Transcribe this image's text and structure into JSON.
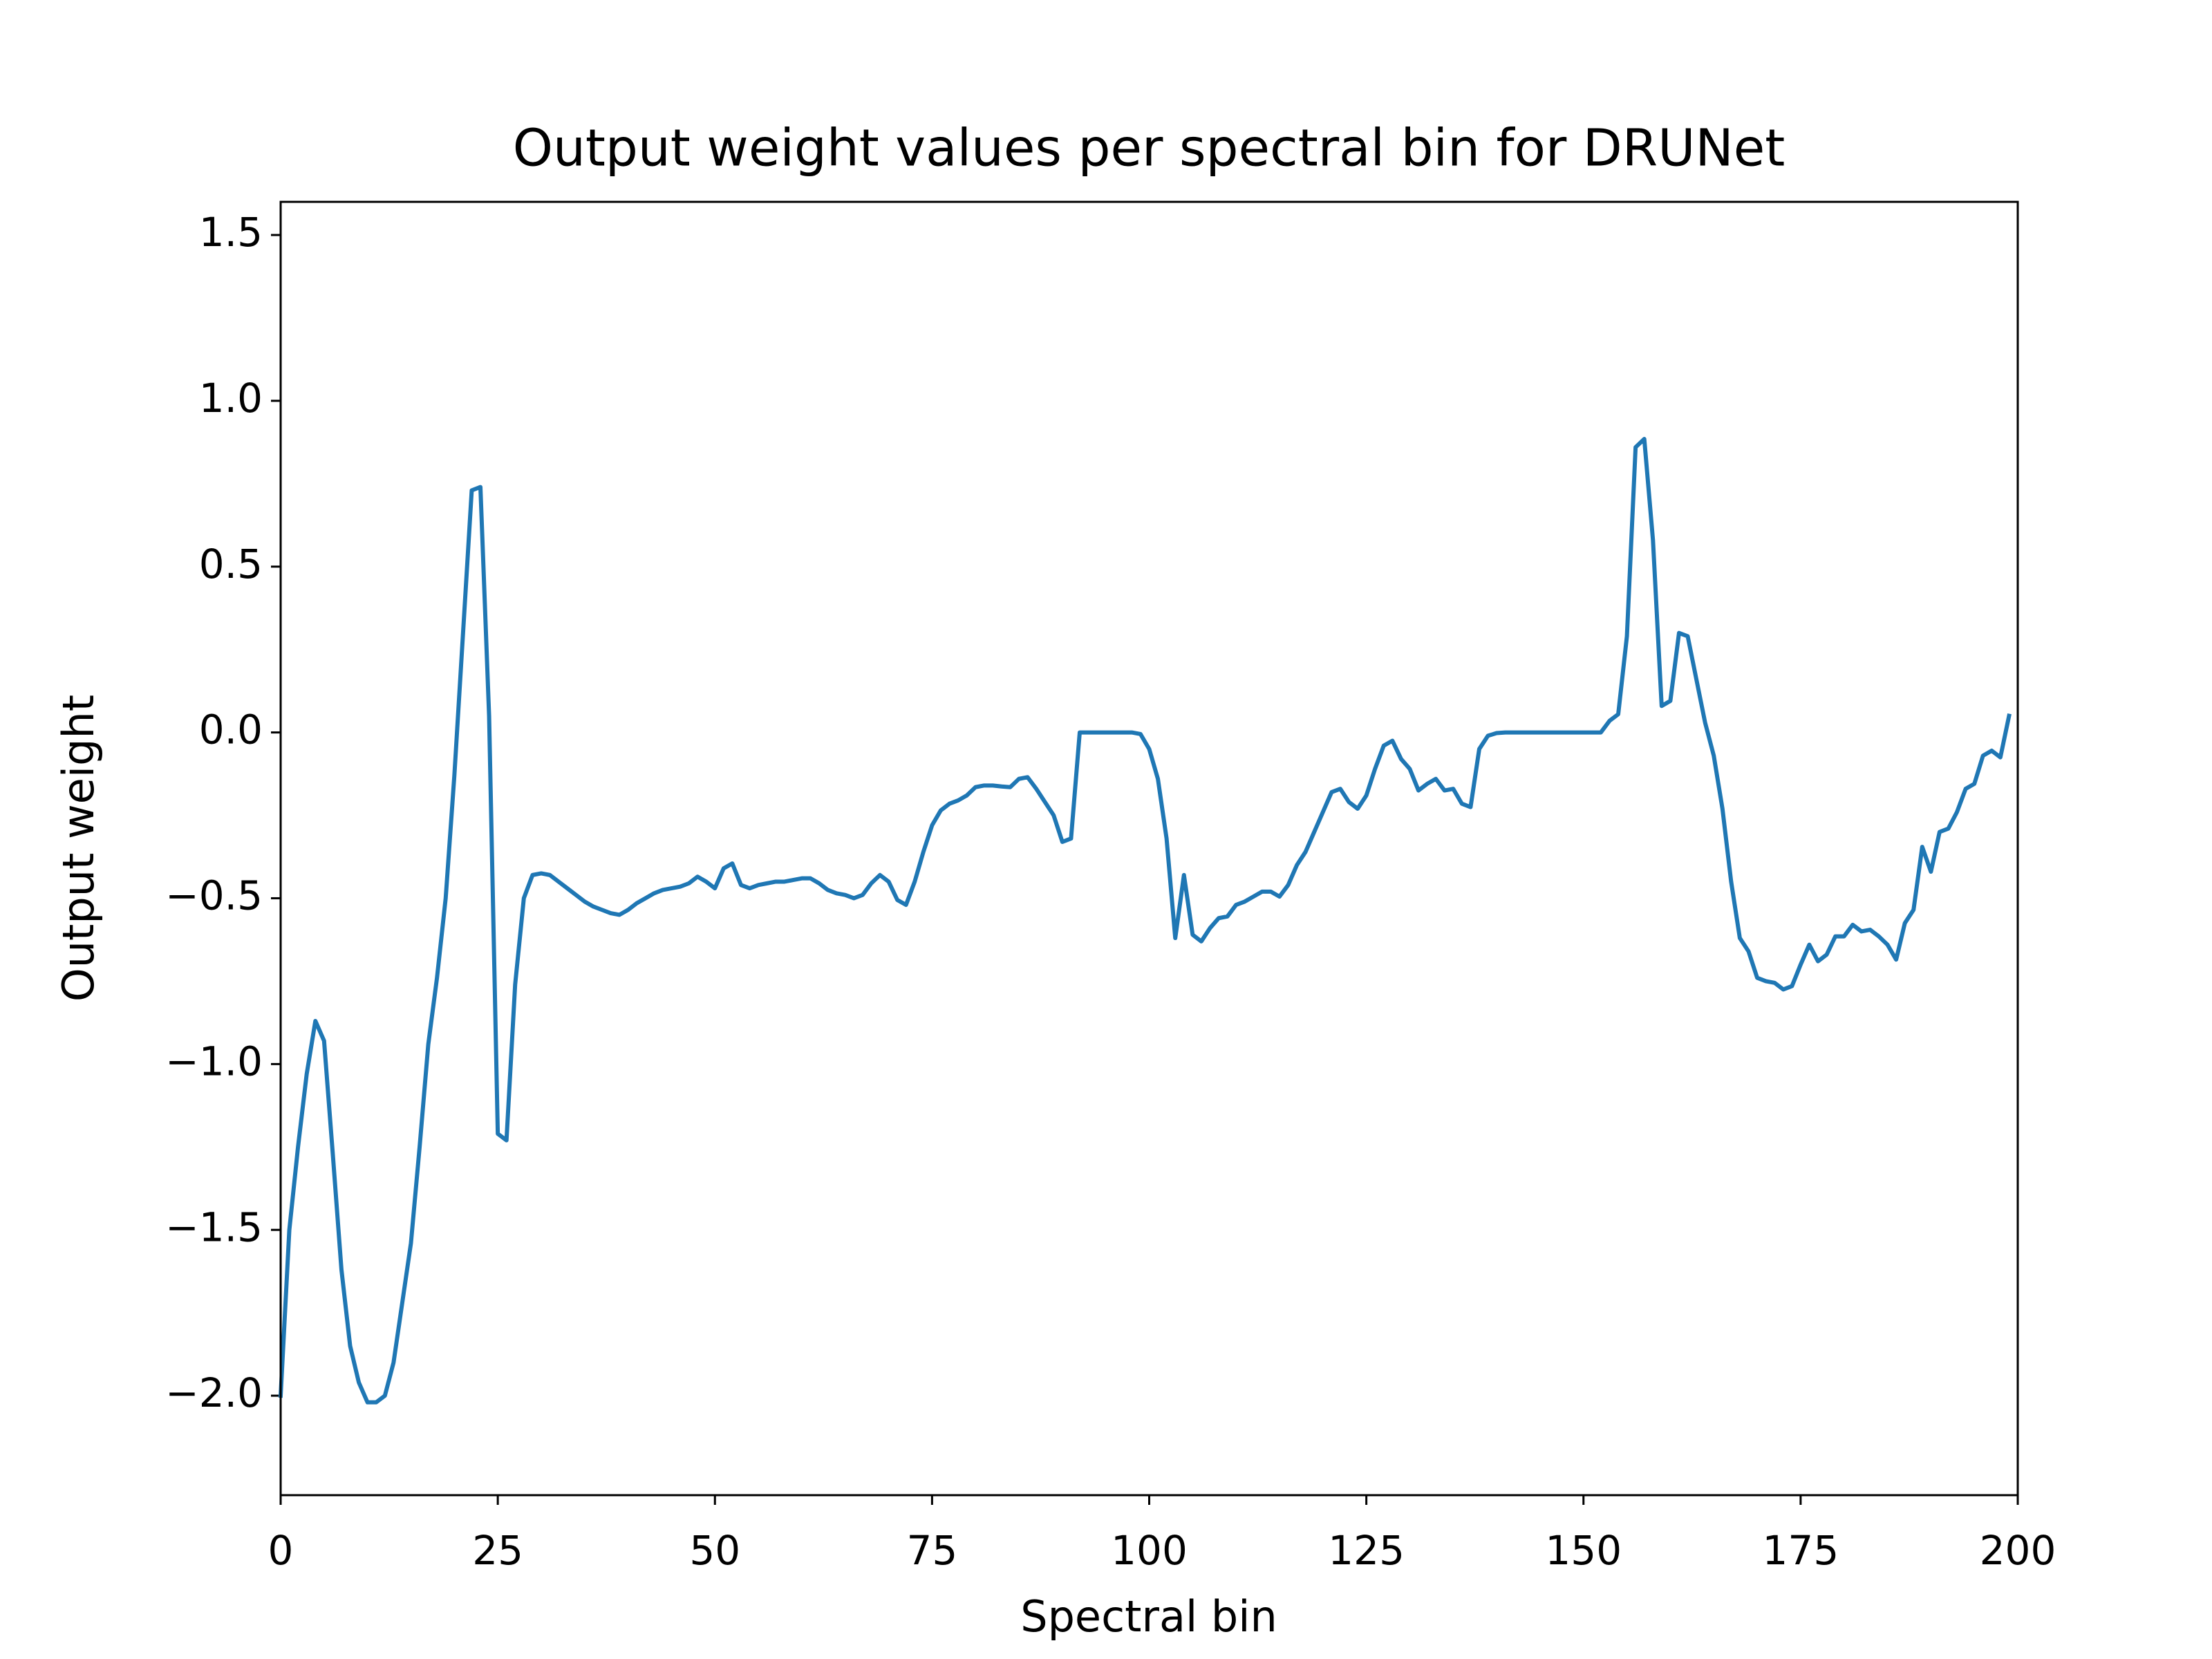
{
  "chart_data": {
    "type": "line",
    "title": "Output weight values per spectral bin for DRUNet",
    "xlabel": "Spectral bin",
    "ylabel": "Output weight",
    "color": "#1f77b4",
    "x": [
      0,
      1,
      2,
      3,
      4,
      5,
      6,
      7,
      8,
      9,
      10,
      11,
      12,
      13,
      14,
      15,
      16,
      17,
      18,
      19,
      20,
      21,
      22,
      23,
      24,
      25,
      26,
      27,
      28,
      29,
      30,
      31,
      32,
      33,
      34,
      35,
      36,
      37,
      38,
      39,
      40,
      41,
      42,
      43,
      44,
      45,
      46,
      47,
      48,
      49,
      50,
      51,
      52,
      53,
      54,
      55,
      56,
      57,
      58,
      59,
      60,
      61,
      62,
      63,
      64,
      65,
      66,
      67,
      68,
      69,
      70,
      71,
      72,
      73,
      74,
      75,
      76,
      77,
      78,
      79,
      80,
      81,
      82,
      83,
      84,
      85,
      86,
      87,
      88,
      89,
      90,
      91,
      92,
      93,
      94,
      95,
      96,
      97,
      98,
      99,
      100,
      101,
      102,
      103,
      104,
      105,
      106,
      107,
      108,
      109,
      110,
      111,
      112,
      113,
      114,
      115,
      116,
      117,
      118,
      119,
      120,
      121,
      122,
      123,
      124,
      125,
      126,
      127,
      128,
      129,
      130,
      131,
      132,
      133,
      134,
      135,
      136,
      137,
      138,
      139,
      140,
      141,
      142,
      143,
      144,
      145,
      146,
      147,
      148,
      149,
      150,
      151,
      152,
      153,
      154,
      155,
      156,
      157,
      158,
      159,
      160,
      161,
      162,
      163,
      164,
      165,
      166,
      167,
      168,
      169,
      170,
      171,
      172,
      173,
      174,
      175,
      176,
      177,
      178,
      179,
      180,
      181,
      182,
      183,
      184,
      185,
      186,
      187,
      188,
      189,
      190,
      191,
      192,
      193,
      194,
      195,
      196,
      197,
      198,
      199
    ],
    "values": [
      -2.0,
      -1.5,
      -1.25,
      -1.03,
      -0.87,
      -0.93,
      -1.27,
      -1.62,
      -1.85,
      -1.96,
      -2.02,
      -2.02,
      -2.0,
      -1.9,
      -1.72,
      -1.54,
      -1.25,
      -0.94,
      -0.74,
      -0.5,
      -0.13,
      0.3,
      0.73,
      0.74,
      0.05,
      -1.21,
      -1.23,
      -0.76,
      -0.5,
      -0.43,
      -0.425,
      -0.43,
      -0.45,
      -0.47,
      -0.49,
      -0.51,
      -0.525,
      -0.535,
      -0.545,
      -0.55,
      -0.535,
      -0.515,
      -0.5,
      -0.485,
      -0.475,
      -0.47,
      -0.465,
      -0.455,
      -0.435,
      -0.45,
      -0.47,
      -0.41,
      -0.395,
      -0.46,
      -0.47,
      -0.46,
      -0.455,
      -0.45,
      -0.45,
      -0.445,
      -0.44,
      -0.44,
      -0.455,
      -0.475,
      -0.485,
      -0.49,
      -0.5,
      -0.49,
      -0.455,
      -0.43,
      -0.45,
      -0.505,
      -0.52,
      -0.45,
      -0.36,
      -0.28,
      -0.235,
      -0.215,
      -0.205,
      -0.19,
      -0.165,
      -0.16,
      -0.16,
      -0.163,
      -0.165,
      -0.14,
      -0.135,
      -0.17,
      -0.21,
      -0.25,
      -0.33,
      -0.32,
      0.0,
      0.0,
      0.0,
      0.0,
      0.0,
      0.0,
      0.0,
      -0.005,
      -0.05,
      -0.14,
      -0.32,
      -0.62,
      -0.43,
      -0.61,
      -0.63,
      -0.59,
      -0.56,
      -0.555,
      -0.52,
      -0.51,
      -0.495,
      -0.48,
      -0.48,
      -0.495,
      -0.46,
      -0.4,
      -0.36,
      -0.3,
      -0.24,
      -0.18,
      -0.17,
      -0.21,
      -0.23,
      -0.19,
      -0.11,
      -0.04,
      -0.025,
      -0.08,
      -0.11,
      -0.175,
      -0.155,
      -0.14,
      -0.175,
      -0.17,
      -0.215,
      -0.225,
      -0.05,
      -0.01,
      -0.002,
      0.0,
      0.0,
      0.0,
      0.0,
      0.0,
      0.0,
      0.0,
      0.0,
      0.0,
      0.0,
      0.0,
      0.0,
      0.035,
      0.055,
      0.29,
      0.86,
      0.885,
      0.58,
      0.08,
      0.095,
      0.3,
      0.29,
      0.16,
      0.03,
      -0.07,
      -0.23,
      -0.45,
      -0.62,
      -0.66,
      -0.74,
      -0.75,
      -0.755,
      -0.775,
      -0.765,
      -0.7,
      -0.64,
      -0.69,
      -0.67,
      -0.615,
      -0.615,
      -0.58,
      -0.6,
      -0.595,
      -0.615,
      -0.64,
      -0.685,
      -0.575,
      -0.535,
      -0.345,
      -0.42,
      -0.3,
      -0.29,
      -0.24,
      -0.17,
      -0.155,
      -0.07,
      -0.055,
      -0.075,
      0.05
    ],
    "xlim": [
      0,
      200
    ],
    "xticks": [
      0,
      25,
      50,
      75,
      100,
      125,
      150,
      175,
      200
    ],
    "ylim": [
      -2.3,
      1.6
    ],
    "yticks": [
      {
        "value": -2,
        "label": "−2.0"
      },
      {
        "value": -1.5,
        "label": "−1.5"
      },
      {
        "value": -1,
        "label": "−1.0"
      },
      {
        "value": -0.5,
        "label": "−0.5"
      },
      {
        "value": 0,
        "label": "0.0"
      },
      0.5,
      {
        "value": 1,
        "label": "1.0"
      },
      1.5
    ],
    "grid": false
  }
}
